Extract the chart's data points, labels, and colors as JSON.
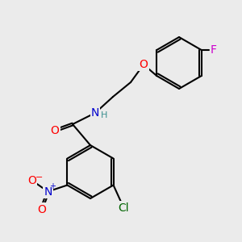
{
  "background_color": "#ebebeb",
  "bond_color": "#000000",
  "bond_width": 1.5,
  "atom_colors": {
    "O": "#ff0000",
    "N_amide": "#0000cd",
    "N_nitro": "#0000cd",
    "H": "#3a8f8f",
    "F": "#cc00cc",
    "Cl": "#006400",
    "C": "#000000"
  },
  "font_size": 10
}
